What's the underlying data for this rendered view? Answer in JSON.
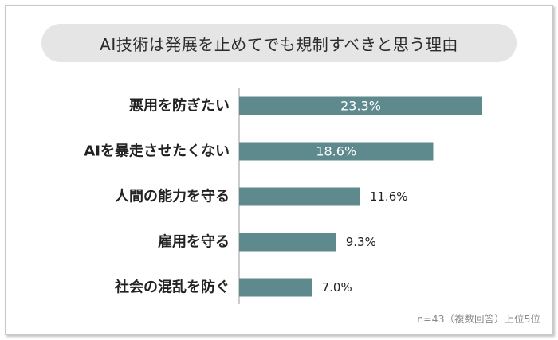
{
  "chart_data": {
    "type": "bar",
    "orientation": "horizontal",
    "title": "AI技術は発展を止めてでも規制すべきと思う理由",
    "categories": [
      "悪用を防ぎたい",
      "AIを暴走させたくない",
      "人間の能力を守る",
      "雇用を守る",
      "社会の混乱を防ぐ"
    ],
    "values": [
      23.3,
      18.6,
      11.6,
      9.3,
      7.0
    ],
    "value_labels": [
      "23.3%",
      "18.6%",
      "11.6%",
      "9.3%",
      "7.0%"
    ],
    "bar_color": "#5e8a8e",
    "grid": false,
    "xlim": [
      0,
      23.3
    ]
  },
  "note": "n=43（複数回答）上位5位"
}
